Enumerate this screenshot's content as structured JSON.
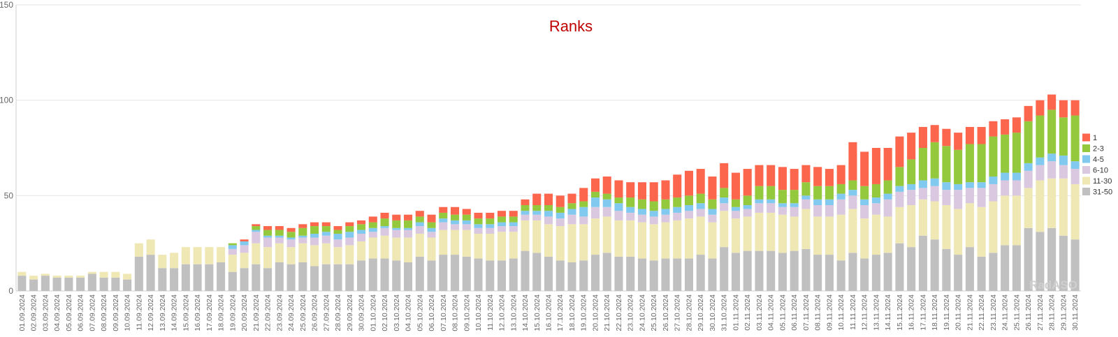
{
  "chart_data": {
    "type": "bar",
    "stacked": true,
    "title": "Ranks",
    "watermark": "RadASO",
    "ylim": [
      0,
      150
    ],
    "yticks": [
      0,
      50,
      100,
      150
    ],
    "legend_position": "right",
    "categories": [
      "01.09.2024",
      "02.09.2024",
      "03.09.2024",
      "04.09.2024",
      "05.09.2024",
      "06.09.2024",
      "07.09.2024",
      "08.09.2024",
      "09.09.2024",
      "10.09.2024",
      "11.09.2024",
      "12.09.2024",
      "13.09.2024",
      "14.09.2024",
      "15.09.2024",
      "16.09.2024",
      "17.09.2024",
      "18.09.2024",
      "19.09.2024",
      "20.09.2024",
      "21.09.2024",
      "22.09.2024",
      "23.09.2024",
      "24.09.2024",
      "25.09.2024",
      "26.09.2024",
      "27.09.2024",
      "28.09.2024",
      "29.09.2024",
      "30.09.2024",
      "01.10.2024",
      "02.10.2024",
      "03.10.2024",
      "04.10.2024",
      "05.10.2024",
      "06.10.2024",
      "07.10.2024",
      "08.10.2024",
      "09.10.2024",
      "10.10.2024",
      "11.10.2024",
      "12.10.2024",
      "13.10.2024",
      "14.10.2024",
      "15.10.2024",
      "16.10.2024",
      "17.10.2024",
      "18.10.2024",
      "19.10.2024",
      "20.10.2024",
      "21.10.2024",
      "22.10.2024",
      "23.10.2024",
      "24.10.2024",
      "25.10.2024",
      "26.10.2024",
      "27.10.2024",
      "28.10.2024",
      "29.10.2024",
      "30.10.2024",
      "31.10.2024",
      "01.11.2024",
      "02.11.2024",
      "03.11.2024",
      "04.11.2024",
      "05.11.2024",
      "06.11.2024",
      "07.11.2024",
      "08.11.2024",
      "09.11.2024",
      "10.11.2024",
      "11.11.2024",
      "12.11.2024",
      "13.11.2024",
      "14.11.2024",
      "15.11.2024",
      "16.11.2024",
      "17.11.2024",
      "18.11.2024",
      "19.11.2024",
      "20.11.2024",
      "21.11.2024",
      "22.11.2024",
      "23.11.2024",
      "24.11.2024",
      "25.11.2024",
      "26.11.2024",
      "27.11.2024",
      "28.11.2024",
      "29.11.2024",
      "30.11.2024"
    ],
    "series": [
      {
        "name": "31-50",
        "color": "#c0c0c0",
        "values": [
          8,
          6,
          8,
          7,
          7,
          7,
          9,
          7,
          7,
          6,
          18,
          19,
          12,
          12,
          14,
          14,
          14,
          15,
          10,
          12,
          14,
          12,
          15,
          14,
          15,
          13,
          14,
          14,
          14,
          16,
          17,
          17,
          16,
          15,
          18,
          16,
          19,
          19,
          18,
          17,
          16,
          16,
          17,
          21,
          20,
          18,
          16,
          15,
          16,
          19,
          20,
          18,
          18,
          17,
          16,
          17,
          17,
          17,
          19,
          17,
          23,
          20,
          21,
          21,
          21,
          20,
          21,
          22,
          19,
          19,
          16,
          20,
          17,
          19,
          20,
          25,
          23,
          29,
          27,
          22,
          19,
          23,
          18,
          20,
          24,
          24,
          33,
          31,
          33,
          29,
          27
        ]
      },
      {
        "name": "11-30",
        "color": "#efe8b5",
        "values": [
          2,
          2,
          1,
          1,
          1,
          1,
          1,
          3,
          3,
          3,
          7,
          8,
          7,
          8,
          9,
          9,
          9,
          8,
          9,
          8,
          11,
          11,
          10,
          9,
          10,
          11,
          11,
          9,
          10,
          10,
          11,
          12,
          12,
          13,
          12,
          12,
          13,
          13,
          14,
          13,
          14,
          15,
          14,
          16,
          17,
          17,
          18,
          20,
          19,
          19,
          19,
          19,
          19,
          19,
          19,
          19,
          20,
          21,
          20,
          19,
          19,
          18,
          18,
          20,
          20,
          20,
          18,
          21,
          20,
          20,
          24,
          23,
          21,
          21,
          19,
          19,
          22,
          19,
          20,
          23,
          24,
          23,
          26,
          27,
          26,
          26,
          21,
          27,
          26,
          30,
          29
        ]
      },
      {
        "name": "6-10",
        "color": "#d9c8e0",
        "values": [
          0,
          0,
          0,
          0,
          0,
          0,
          0,
          0,
          0,
          0,
          0,
          0,
          0,
          0,
          0,
          0,
          0,
          0,
          3,
          4,
          6,
          5,
          3,
          4,
          3,
          4,
          4,
          4,
          4,
          4,
          3,
          4,
          4,
          4,
          4,
          3,
          4,
          3,
          3,
          3,
          3,
          3,
          3,
          3,
          3,
          4,
          4,
          5,
          4,
          6,
          5,
          5,
          4,
          4,
          4,
          4,
          4,
          4,
          4,
          4,
          4,
          4,
          4,
          5,
          5,
          4,
          5,
          5,
          6,
          6,
          8,
          7,
          7,
          6,
          9,
          8,
          8,
          6,
          8,
          8,
          10,
          8,
          10,
          9,
          8,
          8,
          9,
          8,
          9,
          7,
          8
        ]
      },
      {
        "name": "4-5",
        "color": "#82c9f0",
        "values": [
          0,
          0,
          0,
          0,
          0,
          0,
          0,
          0,
          0,
          0,
          0,
          0,
          0,
          0,
          0,
          0,
          0,
          0,
          2,
          2,
          1,
          1,
          1,
          1,
          1,
          2,
          2,
          3,
          3,
          2,
          2,
          1,
          1,
          1,
          2,
          2,
          2,
          2,
          2,
          2,
          2,
          2,
          2,
          2,
          2,
          3,
          3,
          3,
          5,
          5,
          4,
          4,
          3,
          3,
          3,
          3,
          3,
          3,
          3,
          3,
          3,
          2,
          2,
          2,
          2,
          2,
          2,
          2,
          3,
          3,
          3,
          3,
          3,
          3,
          3,
          3,
          3,
          4,
          4,
          4,
          3,
          3,
          3,
          4,
          4,
          4,
          4,
          4,
          4,
          5,
          4
        ]
      },
      {
        "name": "2-3",
        "color": "#95c93d",
        "values": [
          0,
          0,
          0,
          0,
          0,
          0,
          0,
          0,
          0,
          0,
          0,
          0,
          0,
          0,
          0,
          0,
          0,
          0,
          1,
          0,
          2,
          3,
          3,
          3,
          4,
          4,
          3,
          2,
          3,
          3,
          3,
          4,
          4,
          4,
          3,
          3,
          3,
          3,
          3,
          3,
          3,
          3,
          3,
          3,
          3,
          3,
          3,
          3,
          3,
          3,
          3,
          3,
          5,
          5,
          5,
          5,
          5,
          5,
          5,
          5,
          5,
          4,
          5,
          7,
          7,
          7,
          7,
          7,
          7,
          7,
          5,
          5,
          7,
          7,
          7,
          10,
          13,
          17,
          19,
          19,
          18,
          20,
          20,
          21,
          20,
          21,
          22,
          22,
          23,
          20,
          24
        ]
      },
      {
        "name": "1",
        "color": "#fc664d",
        "values": [
          0,
          0,
          0,
          0,
          0,
          0,
          0,
          0,
          0,
          0,
          0,
          0,
          0,
          0,
          0,
          0,
          0,
          0,
          0,
          1,
          1,
          2,
          2,
          2,
          2,
          2,
          2,
          2,
          2,
          2,
          3,
          3,
          3,
          3,
          3,
          4,
          3,
          4,
          3,
          3,
          3,
          3,
          3,
          3,
          6,
          6,
          6,
          5,
          7,
          7,
          9,
          9,
          8,
          9,
          10,
          10,
          12,
          13,
          13,
          12,
          13,
          14,
          14,
          11,
          11,
          12,
          11,
          9,
          10,
          9,
          10,
          20,
          18,
          19,
          17,
          16,
          14,
          11,
          9,
          9,
          9,
          9,
          9,
          8,
          8,
          8,
          8,
          8,
          8,
          9,
          8
        ]
      }
    ]
  }
}
